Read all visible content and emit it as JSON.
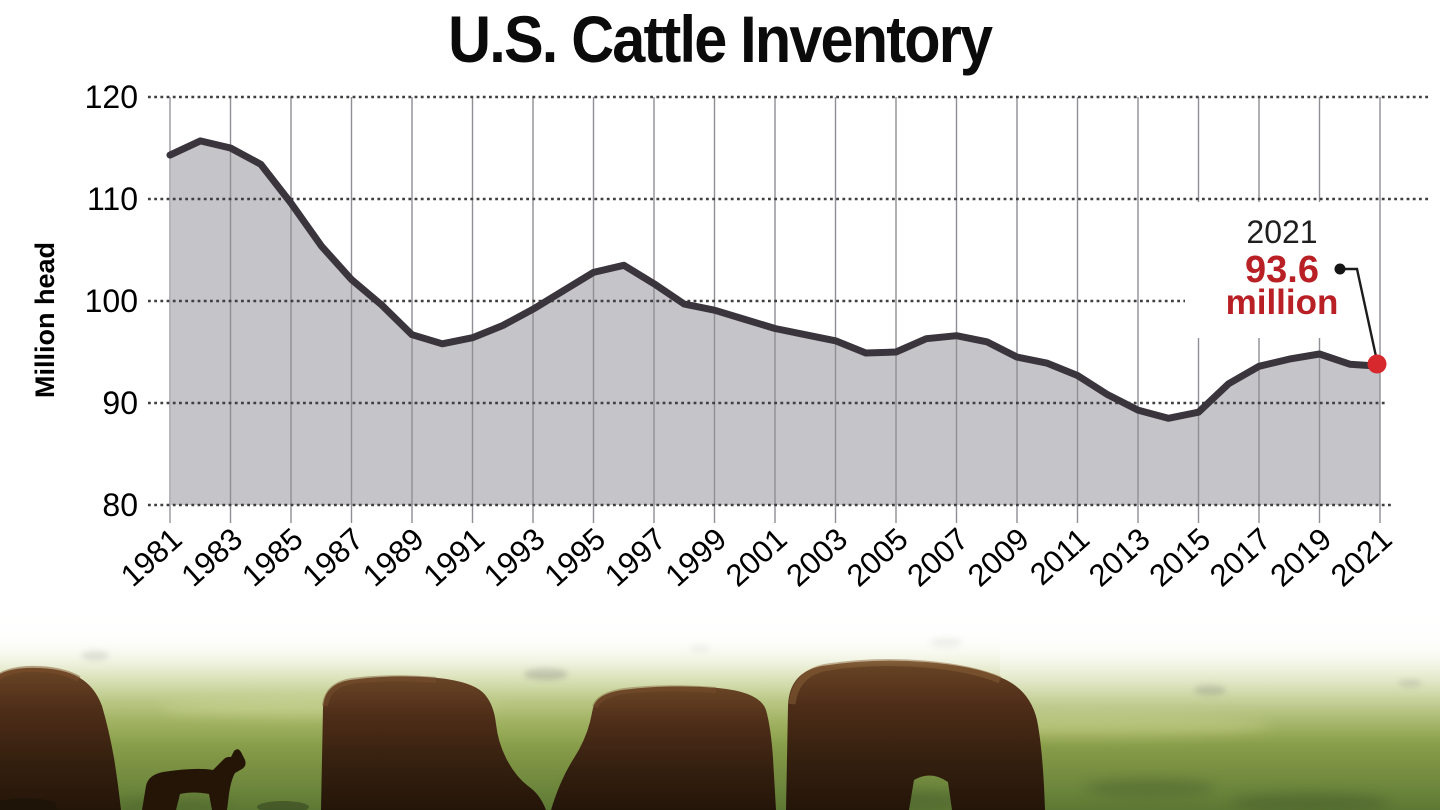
{
  "chart_data": {
    "type": "area",
    "title": "U.S. Cattle Inventory",
    "ylabel": "Million head",
    "ylim": [
      80,
      120
    ],
    "yticks": [
      120,
      110,
      100,
      90,
      80
    ],
    "xticks": [
      1981,
      1983,
      1985,
      1987,
      1989,
      1991,
      1993,
      1995,
      1997,
      1999,
      2001,
      2003,
      2005,
      2007,
      2009,
      2011,
      2013,
      2015,
      2017,
      2019,
      2021
    ],
    "years": [
      1981,
      1982,
      1983,
      1984,
      1985,
      1986,
      1987,
      1988,
      1989,
      1990,
      1991,
      1992,
      1993,
      1994,
      1995,
      1996,
      1997,
      1998,
      1999,
      2000,
      2001,
      2002,
      2003,
      2004,
      2005,
      2006,
      2007,
      2008,
      2009,
      2010,
      2011,
      2012,
      2013,
      2014,
      2015,
      2016,
      2017,
      2018,
      2019,
      2020,
      2021
    ],
    "values": [
      114.3,
      115.7,
      115.0,
      113.4,
      109.6,
      105.4,
      102.1,
      99.6,
      96.7,
      95.8,
      96.4,
      97.6,
      99.2,
      101.0,
      102.8,
      103.5,
      101.7,
      99.7,
      99.1,
      98.2,
      97.3,
      96.7,
      96.1,
      94.9,
      95.0,
      96.3,
      96.6,
      96.0,
      94.5,
      93.9,
      92.7,
      90.8,
      89.3,
      88.5,
      89.1,
      91.9,
      93.6,
      94.3,
      94.8,
      93.8,
      93.6
    ],
    "callout": {
      "year": "2021",
      "value": "93.6",
      "unit": "million"
    },
    "grid": "horizontal-dotted and vertical-solid",
    "legend_position": "none",
    "colors": {
      "area_fill": "#c5c4c9",
      "line": "#3a353d",
      "callout_text": "#b92025",
      "callout_dot": "#d7282e",
      "axis_text": "#000000"
    }
  }
}
